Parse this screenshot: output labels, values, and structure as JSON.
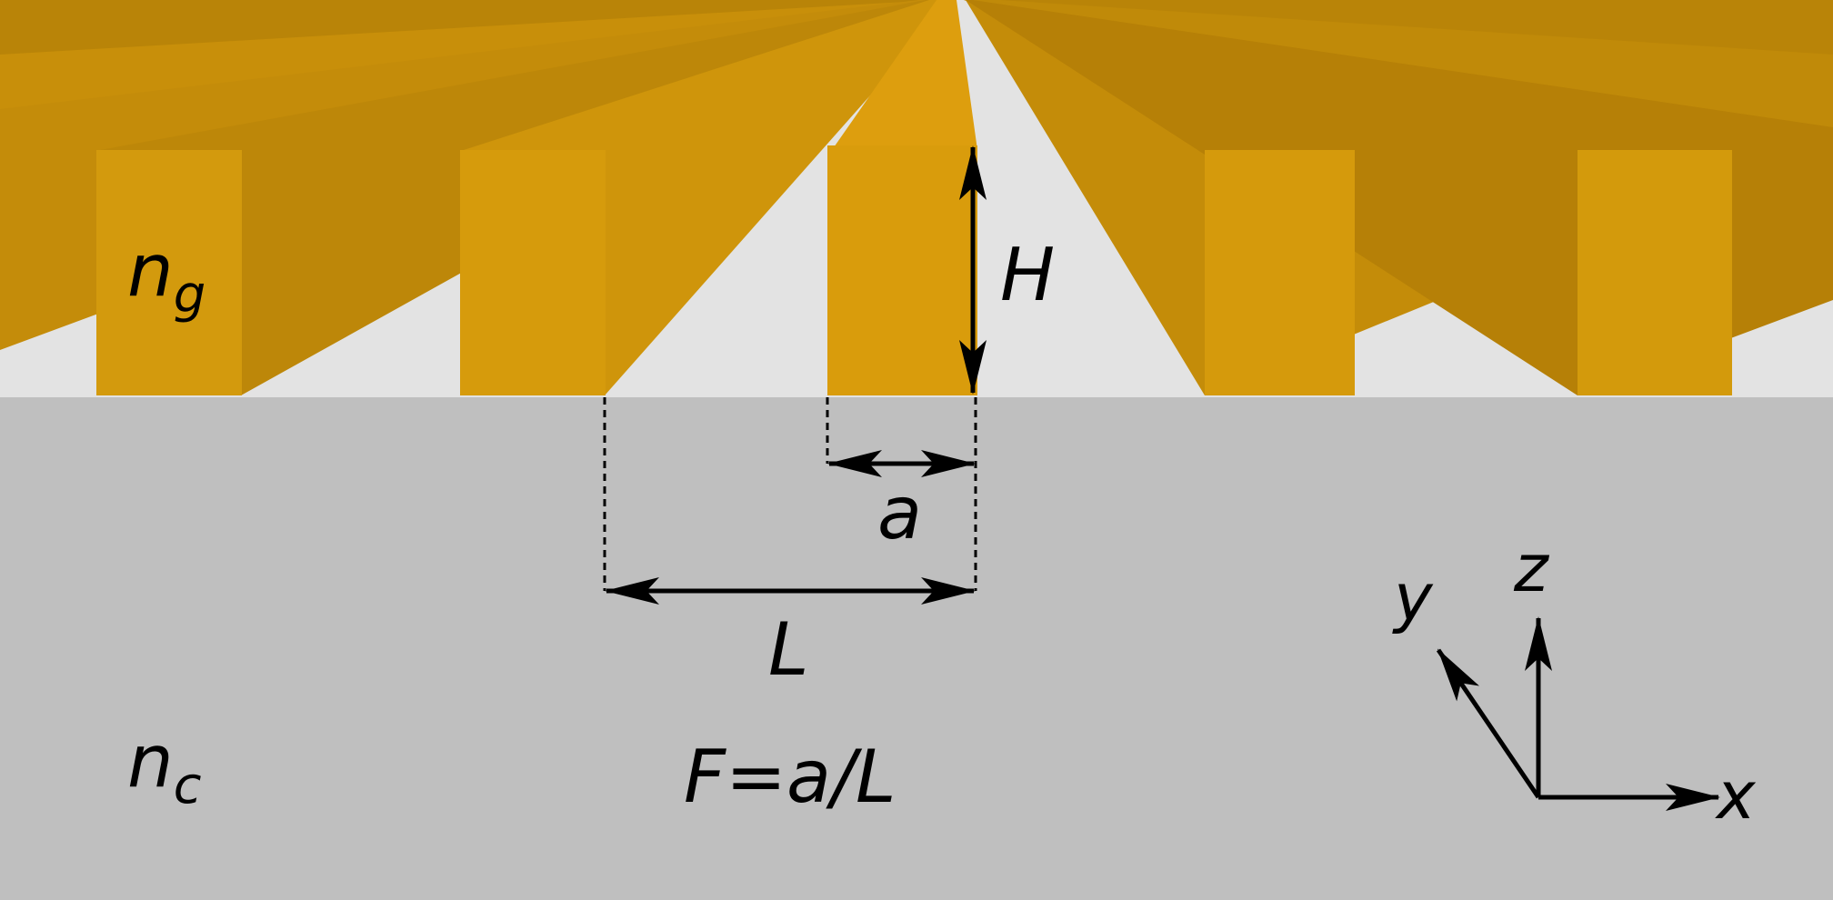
{
  "colors": {
    "substrate": "#bfbfbf",
    "gap_background": "#e3e3e3",
    "grating_front": "#d69a0c",
    "grating_side_dark": "#bb8409",
    "grating_top": "#e3a210",
    "annotation": "#000000"
  },
  "labels": {
    "grating_index_main": "n",
    "grating_index_sub": "g",
    "cover_index_main": "n",
    "cover_index_sub": "c",
    "height": "H",
    "width": "a",
    "period": "L",
    "fill_factor": "F=a/L",
    "axis_x": "x",
    "axis_y": "y",
    "axis_z": "z"
  }
}
